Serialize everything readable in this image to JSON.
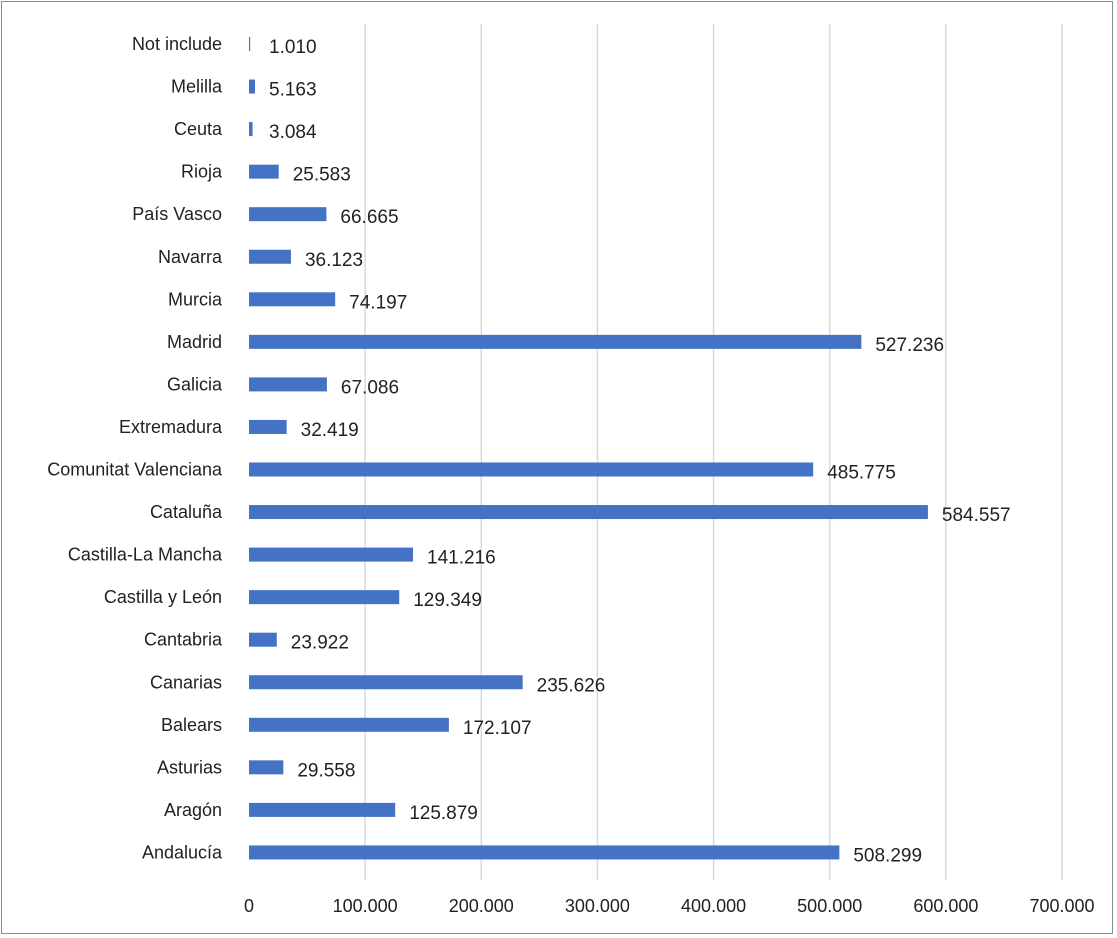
{
  "chart_data": {
    "type": "bar",
    "orientation": "horizontal",
    "title": "",
    "xlabel": "",
    "ylabel": "",
    "categories": [
      "Not include",
      "Melilla",
      "Ceuta",
      "Rioja",
      "País Vasco",
      "Navarra",
      "Murcia",
      "Madrid",
      "Galicia",
      "Extremadura",
      "Comunitat Valenciana",
      "Cataluña",
      "Castilla-La Mancha",
      "Castilla y León",
      "Cantabria",
      "Canarias",
      "Balears",
      "Asturias",
      "Aragón",
      "Andalucía"
    ],
    "values": [
      1010,
      5163,
      3084,
      25583,
      66665,
      36123,
      74197,
      527236,
      67086,
      32419,
      485775,
      584557,
      141216,
      129349,
      23922,
      235626,
      172107,
      29558,
      125879,
      508299
    ],
    "value_labels": [
      "1.010",
      "5.163",
      "3.084",
      "25.583",
      "66.665",
      "36.123",
      "74.197",
      "527.236",
      "67.086",
      "32.419",
      "485.775",
      "584.557",
      "141.216",
      "129.349",
      "23.922",
      "235.626",
      "172.107",
      "29.558",
      "125.879",
      "508.299"
    ],
    "xlim": [
      0,
      700000
    ],
    "x_ticks": [
      0,
      100000,
      200000,
      300000,
      400000,
      500000,
      600000,
      700000
    ],
    "x_tick_labels": [
      "0",
      "100.000",
      "200.000",
      "300.000",
      "400.000",
      "500.000",
      "600.000",
      "700.000"
    ],
    "grid": "vertical",
    "legend": "none",
    "colors": {
      "bar": "#4472C4",
      "grid": "#d9d9d9",
      "text": "#222222"
    }
  }
}
